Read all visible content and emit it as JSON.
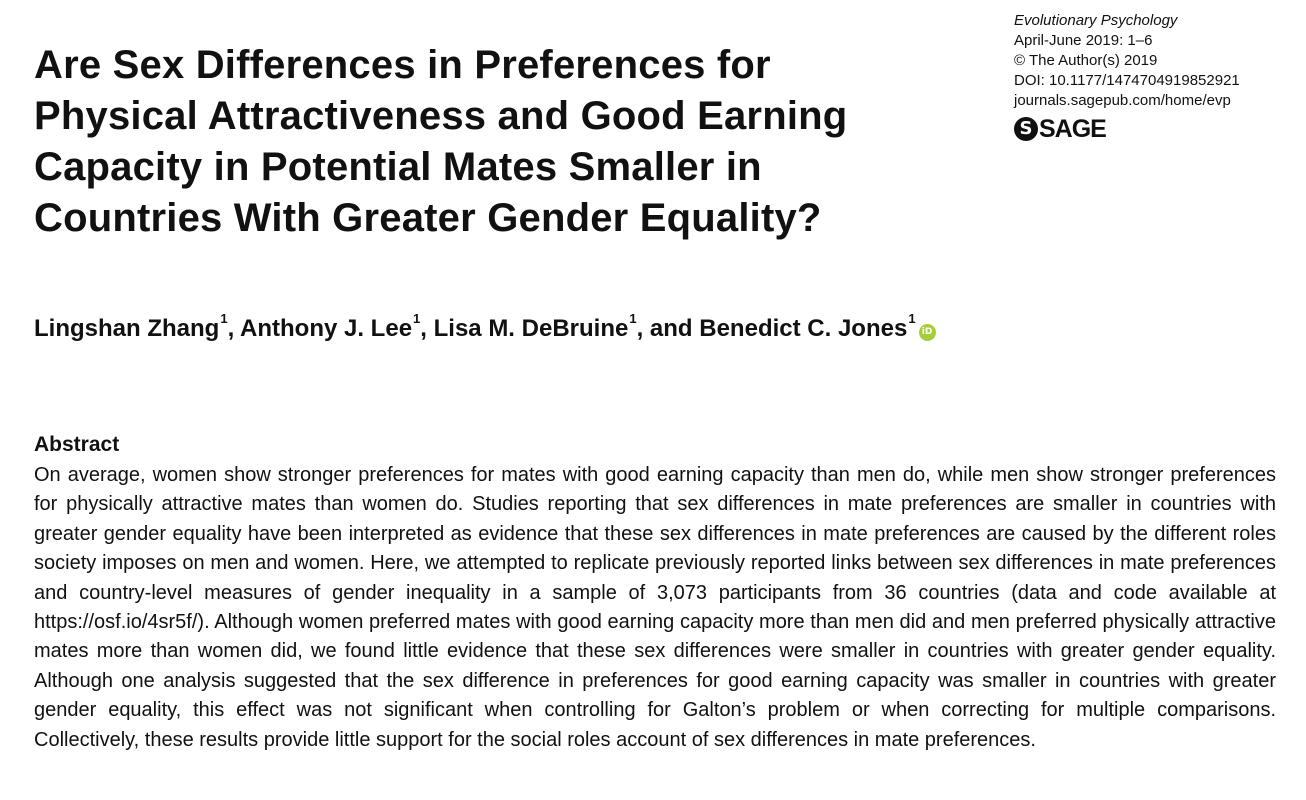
{
  "journal": {
    "name": "Evolutionary Psychology",
    "issue": "April-June 2019: 1–6",
    "copyright": "© The Author(s) 2019",
    "doi": "DOI: 10.1177/1474704919852921",
    "url": "journals.sagepub.com/home/evp",
    "publisher_logo": "SAGE"
  },
  "title": "Are Sex Differences in Preferences for Physical Attractiveness and Good Earning Capacity in Potential Mates Smaller in Countries With Greater Gender Equality?",
  "authors": [
    {
      "name": "Lingshan Zhang",
      "affiliation": "1",
      "separator": ", "
    },
    {
      "name": "Anthony J. Lee",
      "affiliation": "1",
      "separator": ", "
    },
    {
      "name": "Lisa M. DeBruine",
      "affiliation": "1",
      "separator": ", and "
    },
    {
      "name": "Benedict C. Jones",
      "affiliation": "1",
      "separator": ""
    }
  ],
  "orcid_icon": "orcid-icon",
  "orcid_label": "iD",
  "abstract": {
    "heading": "Abstract",
    "text": "On average, women show stronger preferences for mates with good earning capacity than men do, while men show stronger preferences for physically attractive mates than women do. Studies reporting that sex differences in mate preferences are smaller in countries with greater gender equality have been interpreted as evidence that these sex differences in mate preferences are caused by the different roles society imposes on men and women. Here, we attempted to replicate previously reported links between sex differences in mate preferences and country-level measures of gender inequality in a sample of 3,073 participants from 36 countries (data and code available at https://osf.io/4sr5f/). Although women preferred mates with good earning capacity more than men did and men preferred physically attractive mates more than women did, we found little evidence that these sex differences were smaller in countries with greater gender equality. Although one analysis suggested that the sex difference in preferences for good earning capacity was smaller in countries with greater gender equality, this effect was not significant when controlling for Galton’s problem or when correcting for multiple comparisons. Collectively, these results provide little support for the social roles account of sex differences in mate preferences."
  }
}
